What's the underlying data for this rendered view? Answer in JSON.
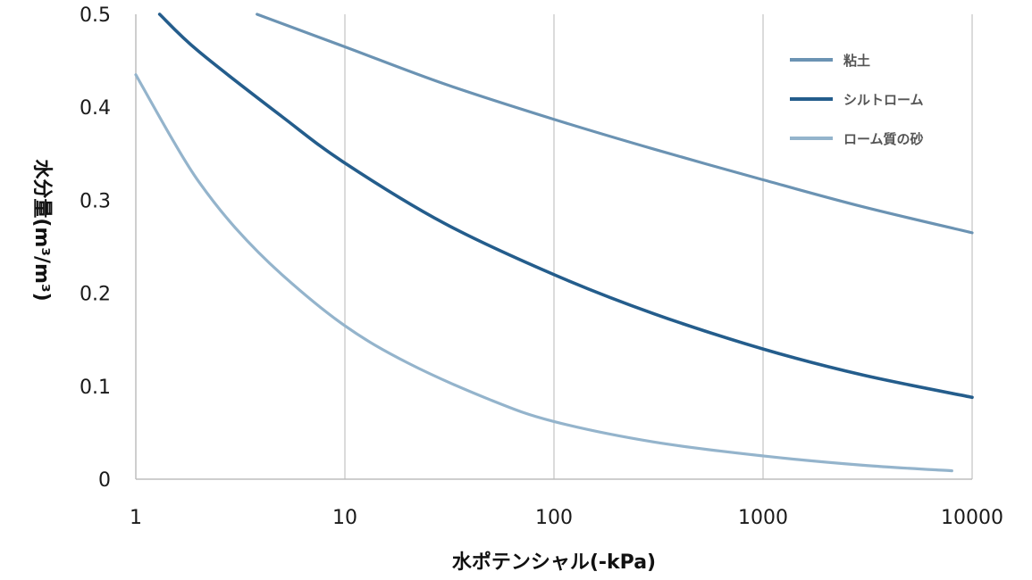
{
  "chart_data": {
    "type": "line",
    "xlabel": "水ポテンシャル(-kPa)",
    "ylabel": "水分量(m³/m³)",
    "x_scale": "log",
    "xlim": [
      1,
      10000
    ],
    "ylim": [
      0,
      0.5
    ],
    "x_ticks": [
      "1",
      "10",
      "100",
      "1000",
      "10000"
    ],
    "y_ticks": [
      "0",
      "0.1",
      "0.2",
      "0.3",
      "0.4",
      "0.5"
    ],
    "grid": {
      "vertical": true,
      "horizontal": false
    },
    "legend_position": "top-right",
    "series": [
      {
        "name": "粘土",
        "color": "#6b93b3",
        "x": [
          3.8,
          10,
          30,
          100,
          300,
          1000,
          3000,
          10000
        ],
        "y": [
          0.5,
          0.465,
          0.425,
          0.387,
          0.355,
          0.322,
          0.293,
          0.265
        ]
      },
      {
        "name": "シルトローム",
        "color": "#245d8c",
        "x": [
          1.3,
          2,
          5,
          10,
          30,
          100,
          300,
          1000,
          3000,
          10000
        ],
        "y": [
          0.5,
          0.46,
          0.39,
          0.34,
          0.275,
          0.22,
          0.178,
          0.14,
          0.112,
          0.088
        ]
      },
      {
        "name": "ローム質の砂",
        "color": "#94b4cc",
        "x": [
          1,
          1.5,
          2,
          3,
          5,
          10,
          20,
          50,
          100,
          300,
          1000,
          3000,
          8000
        ],
        "y": [
          0.435,
          0.365,
          0.32,
          0.27,
          0.22,
          0.165,
          0.125,
          0.085,
          0.062,
          0.04,
          0.025,
          0.015,
          0.009
        ]
      }
    ]
  }
}
